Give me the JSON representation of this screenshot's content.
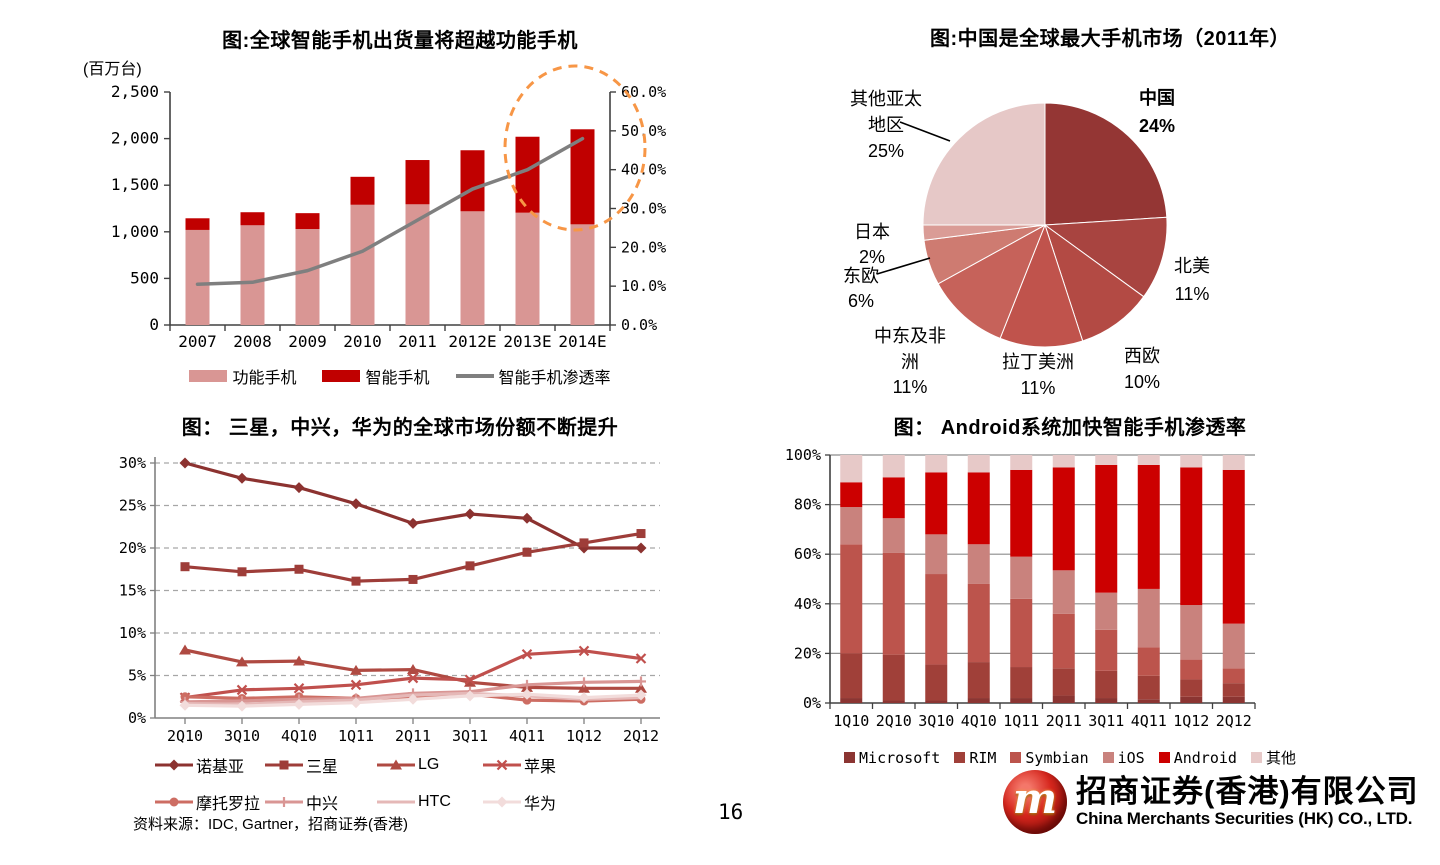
{
  "page": {
    "number": "16",
    "source_note": "资料来源：IDC, Gartner，招商证券(香港)",
    "logo": {
      "monogram": "m",
      "cn_name": "招商证券(香港)有限公司",
      "en_name": "China Merchants Securities (HK) CO., LTD."
    }
  },
  "chart_data": [
    {
      "id": "global-shipments",
      "type": "bar",
      "title": "图:全球智能手机出货量将超越功能手机",
      "unit_label": "(百万台)",
      "categories": [
        "2007",
        "2008",
        "2009",
        "2010",
        "2011",
        "2012E",
        "2013E",
        "2014E"
      ],
      "series": [
        {
          "name": "功能手机",
          "type": "bar",
          "color": "#D99694",
          "values": [
            1020,
            1070,
            1030,
            1290,
            1295,
            1220,
            1205,
            1080
          ]
        },
        {
          "name": "智能手机",
          "type": "bar",
          "color": "#C00000",
          "values": [
            125,
            140,
            170,
            300,
            475,
            655,
            815,
            1020
          ]
        },
        {
          "name": "智能手机渗透率",
          "type": "line",
          "axis": "right",
          "color": "#7F7F7F",
          "values": [
            10.5,
            11,
            14,
            19,
            27,
            35,
            40,
            48
          ]
        }
      ],
      "left_axis": {
        "min": 0,
        "max": 2500,
        "ticks": [
          "2,500",
          "2,000",
          "1,500",
          "1,000",
          "500",
          "0"
        ]
      },
      "right_axis": {
        "min": 0,
        "max": 60,
        "ticks": [
          "60.0%",
          "50.0%",
          "40.0%",
          "30.0%",
          "20.0%",
          "10.0%",
          "0.0%"
        ]
      },
      "highlight_circle": {
        "color": "#F79646"
      },
      "legend_position": "bottom"
    },
    {
      "id": "china-market-pie",
      "type": "pie",
      "title": "图:中国是全球最大手机市场（2011年）",
      "slices": [
        {
          "label": "中国",
          "pct": 24,
          "color": "#943634",
          "label_lines": [
            "中国",
            "24%"
          ]
        },
        {
          "label": "北美",
          "pct": 11,
          "color": "#A84440",
          "label_lines": [
            "北美",
            "11%"
          ]
        },
        {
          "label": "西欧",
          "pct": 10,
          "color": "#B34A44",
          "label_lines": [
            "西欧",
            "10%"
          ]
        },
        {
          "label": "拉丁美洲",
          "pct": 11,
          "color": "#C0534C",
          "label_lines": [
            "拉丁美洲",
            "11%"
          ]
        },
        {
          "label": "中东及非洲",
          "pct": 11,
          "color": "#C6625A",
          "label_lines": [
            "中东及非",
            "洲",
            "11%"
          ]
        },
        {
          "label": "东欧",
          "pct": 6,
          "color": "#CE7B71",
          "label_lines": [
            "东欧",
            "6%"
          ]
        },
        {
          "label": "日本",
          "pct": 2,
          "color": "#DA9C96",
          "label_lines": [
            "日本",
            "2%"
          ]
        },
        {
          "label": "其他亚太地区",
          "pct": 25,
          "color": "#E6C8C7",
          "label_lines": [
            "其他亚太",
            "地区",
            "25%"
          ]
        }
      ]
    },
    {
      "id": "vendor-share",
      "type": "line",
      "title": "图： 三星，中兴，华为的全球市场份额不断提升",
      "categories": [
        "2Q10",
        "3Q10",
        "4Q10",
        "1Q11",
        "2Q11",
        "3Q11",
        "4Q11",
        "1Q12",
        "2Q12"
      ],
      "ylabel": "",
      "ylim": [
        0,
        30
      ],
      "y_ticks": [
        "30%",
        "25%",
        "20%",
        "15%",
        "10%",
        "5%",
        "0%"
      ],
      "grid": "dashed-horizontal",
      "series": [
        {
          "name": "诺基亚",
          "marker": "diamond",
          "color": "#8C3230",
          "values": [
            30.0,
            28.2,
            27.1,
            25.2,
            22.9,
            24.0,
            23.5,
            20.0,
            20.0
          ]
        },
        {
          "name": "三星",
          "marker": "square",
          "color": "#9E3D39",
          "values": [
            17.8,
            17.2,
            17.5,
            16.1,
            16.3,
            17.9,
            19.5,
            20.6,
            21.7
          ]
        },
        {
          "name": "LG",
          "marker": "triangle",
          "color": "#AF4A42",
          "values": [
            8.0,
            6.6,
            6.7,
            5.6,
            5.7,
            4.2,
            3.6,
            3.5,
            3.5
          ]
        },
        {
          "name": "苹果",
          "marker": "x",
          "color": "#C0504D",
          "values": [
            2.4,
            3.3,
            3.5,
            3.9,
            4.7,
            4.5,
            7.5,
            7.9,
            7.0
          ]
        },
        {
          "name": "摩托罗拉",
          "marker": "circle",
          "color": "#CD6D63",
          "values": [
            2.5,
            2.3,
            2.5,
            2.3,
            2.4,
            2.8,
            2.1,
            2.0,
            2.2
          ]
        },
        {
          "name": "中兴",
          "marker": "plus",
          "color": "#D99694",
          "values": [
            1.9,
            2.0,
            2.2,
            2.3,
            2.9,
            3.1,
            3.9,
            4.2,
            4.3
          ]
        },
        {
          "name": "HTC",
          "marker": "none",
          "color": "#E5B8B7",
          "values": [
            1.7,
            1.6,
            1.9,
            2.1,
            2.7,
            2.9,
            2.6,
            2.2,
            2.4
          ]
        },
        {
          "name": "华为",
          "marker": "diamond",
          "color": "#F2DCDB",
          "values": [
            1.5,
            1.4,
            1.6,
            1.8,
            2.2,
            2.6,
            2.8,
            2.4,
            2.7
          ]
        }
      ]
    },
    {
      "id": "os-share",
      "type": "bar",
      "stacked": true,
      "title": "图： Android系统加快智能手机渗透率",
      "categories": [
        "1Q10",
        "2Q10",
        "3Q10",
        "4Q10",
        "1Q11",
        "2Q11",
        "3Q11",
        "4Q11",
        "1Q12",
        "2Q12"
      ],
      "ylim": [
        0,
        100
      ],
      "y_ticks": [
        "100%",
        "80%",
        "60%",
        "40%",
        "20%",
        "0%"
      ],
      "series": [
        {
          "name": "Microsoft",
          "color": "#8B3532",
          "values": [
            2,
            1,
            1,
            2,
            2,
            3,
            2,
            1.5,
            2.5,
            2.5
          ]
        },
        {
          "name": "RIM",
          "color": "#A04039",
          "values": [
            18,
            18.5,
            14.5,
            14.5,
            12.5,
            11,
            11,
            9.5,
            7,
            5.5
          ]
        },
        {
          "name": "Symbian",
          "color": "#BC544C",
          "values": [
            44,
            41,
            36.5,
            31.5,
            27.5,
            22,
            16.5,
            11.5,
            8,
            6
          ]
        },
        {
          "name": "iOS",
          "color": "#C9827D",
          "values": [
            15,
            14,
            16,
            16,
            17,
            17.5,
            15,
            23.5,
            22,
            18
          ]
        },
        {
          "name": "Android",
          "color": "#CC0000",
          "values": [
            10,
            16.5,
            25,
            29,
            35,
            41.5,
            51.5,
            50,
            55.5,
            62
          ]
        },
        {
          "name": "其他",
          "color": "#E7C9C8",
          "values": [
            11,
            9,
            7,
            7,
            6,
            5,
            4,
            4,
            5,
            6
          ]
        }
      ]
    }
  ]
}
